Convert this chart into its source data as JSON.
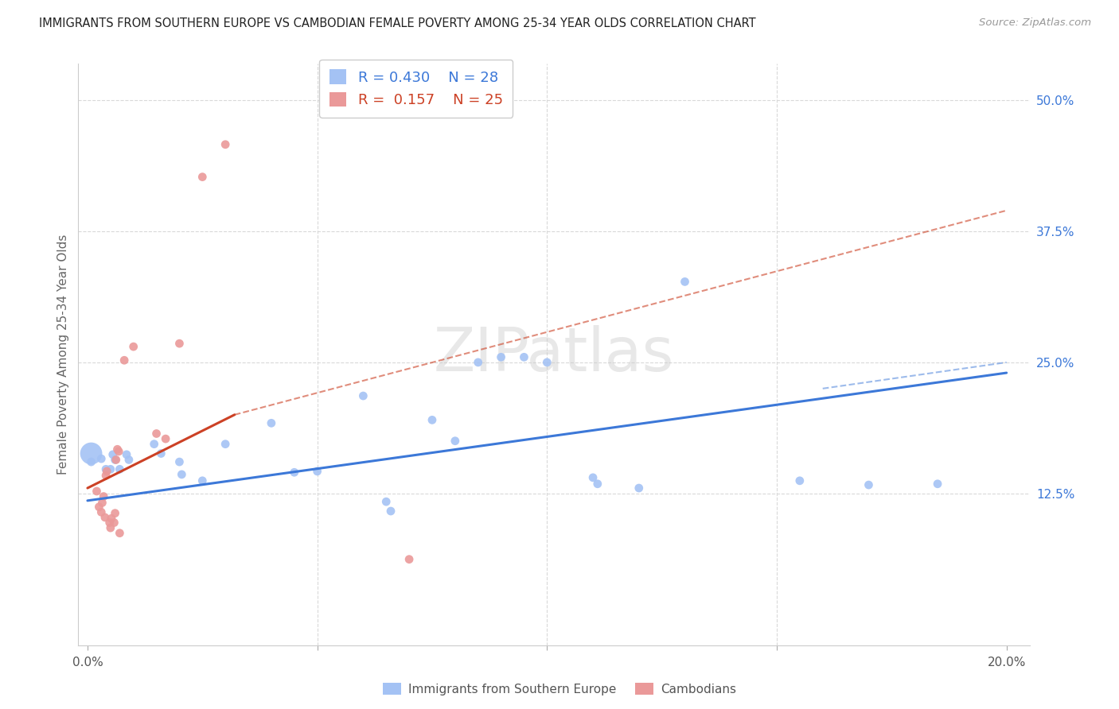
{
  "title": "IMMIGRANTS FROM SOUTHERN EUROPE VS CAMBODIAN FEMALE POVERTY AMONG 25-34 YEAR OLDS CORRELATION CHART",
  "source": "Source: ZipAtlas.com",
  "ylabel": "Female Poverty Among 25-34 Year Olds",
  "xlim": [
    -0.002,
    0.205
  ],
  "ylim": [
    -0.02,
    0.535
  ],
  "yticks_right": [
    0.125,
    0.25,
    0.375,
    0.5
  ],
  "yticklabels_right": [
    "12.5%",
    "25.0%",
    "37.5%",
    "50.0%"
  ],
  "blue_color": "#a4c2f4",
  "blue_line_color": "#3c78d8",
  "pink_color": "#ea9999",
  "pink_line_color": "#cc4125",
  "watermark": "ZIPatlas",
  "grid_color": "#d9d9d9",
  "blue_dots": [
    [
      0.0008,
      0.155
    ],
    [
      0.003,
      0.158
    ],
    [
      0.004,
      0.148
    ],
    [
      0.005,
      0.148
    ],
    [
      0.0055,
      0.162
    ],
    [
      0.006,
      0.157
    ],
    [
      0.007,
      0.148
    ],
    [
      0.0085,
      0.162
    ],
    [
      0.009,
      0.157
    ],
    [
      0.0145,
      0.172
    ],
    [
      0.016,
      0.163
    ],
    [
      0.02,
      0.155
    ],
    [
      0.0205,
      0.143
    ],
    [
      0.025,
      0.137
    ],
    [
      0.03,
      0.172
    ],
    [
      0.04,
      0.192
    ],
    [
      0.045,
      0.145
    ],
    [
      0.05,
      0.146
    ],
    [
      0.06,
      0.218
    ],
    [
      0.065,
      0.117
    ],
    [
      0.066,
      0.108
    ],
    [
      0.075,
      0.195
    ],
    [
      0.08,
      0.175
    ],
    [
      0.085,
      0.25
    ],
    [
      0.09,
      0.255
    ],
    [
      0.095,
      0.255
    ],
    [
      0.1,
      0.25
    ],
    [
      0.11,
      0.14
    ],
    [
      0.111,
      0.134
    ],
    [
      0.12,
      0.13
    ],
    [
      0.13,
      0.327
    ],
    [
      0.155,
      0.137
    ],
    [
      0.17,
      0.133
    ],
    [
      0.185,
      0.134
    ]
  ],
  "blue_large_dot": [
    0.0008,
    0.163
  ],
  "blue_large_dot_size": 400,
  "pink_dots": [
    [
      0.002,
      0.127
    ],
    [
      0.0025,
      0.112
    ],
    [
      0.003,
      0.107
    ],
    [
      0.0032,
      0.116
    ],
    [
      0.0035,
      0.122
    ],
    [
      0.0038,
      0.102
    ],
    [
      0.004,
      0.142
    ],
    [
      0.0042,
      0.146
    ],
    [
      0.0048,
      0.097
    ],
    [
      0.005,
      0.092
    ],
    [
      0.0052,
      0.101
    ],
    [
      0.0058,
      0.097
    ],
    [
      0.006,
      0.106
    ],
    [
      0.0062,
      0.157
    ],
    [
      0.0065,
      0.167
    ],
    [
      0.0068,
      0.165
    ],
    [
      0.007,
      0.087
    ],
    [
      0.008,
      0.252
    ],
    [
      0.01,
      0.265
    ],
    [
      0.015,
      0.182
    ],
    [
      0.017,
      0.177
    ],
    [
      0.02,
      0.268
    ],
    [
      0.025,
      0.427
    ],
    [
      0.03,
      0.458
    ],
    [
      0.07,
      0.062
    ]
  ],
  "blue_line": {
    "x0": 0.0,
    "y0": 0.118,
    "x1": 0.2,
    "y1": 0.24
  },
  "pink_line_solid": {
    "x0": 0.0,
    "y0": 0.13,
    "x1": 0.032,
    "y1": 0.2
  },
  "pink_line_dashed": {
    "x0": 0.032,
    "y0": 0.2,
    "x1": 0.2,
    "y1": 0.395
  },
  "blue_line_dashed": {
    "x0": 0.16,
    "y0": 0.225,
    "x1": 0.2,
    "y1": 0.25
  }
}
